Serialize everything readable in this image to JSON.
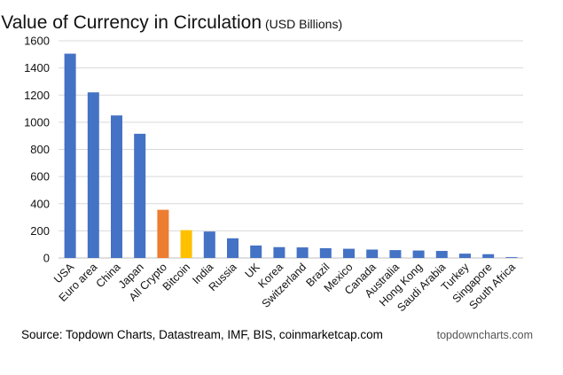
{
  "chart_data": {
    "type": "bar",
    "title": "Value of Currency in Circulation",
    "subtitle": "(USD Billions)",
    "xlabel": "",
    "ylabel": "",
    "ylim": [
      0,
      1600
    ],
    "yticks": [
      0,
      200,
      400,
      600,
      800,
      1000,
      1200,
      1400,
      1600
    ],
    "grid": true,
    "categories": [
      "USA",
      "Euro area",
      "China",
      "Japan",
      "All Crypto",
      "Bitcoin",
      "India",
      "Russia",
      "UK",
      "Korea",
      "Switzerland",
      "Brazil",
      "Mexico",
      "Canada",
      "Australia",
      "Hong Kong",
      "Saudi Arabia",
      "Turkey",
      "Singapore",
      "South Africa"
    ],
    "values": [
      1505,
      1220,
      1050,
      915,
      355,
      205,
      195,
      145,
      92,
      80,
      78,
      72,
      68,
      62,
      58,
      55,
      52,
      32,
      28,
      6
    ],
    "colors": [
      "#4472C4",
      "#4472C4",
      "#4472C4",
      "#4472C4",
      "#ED7D31",
      "#FFC000",
      "#4472C4",
      "#4472C4",
      "#4472C4",
      "#4472C4",
      "#4472C4",
      "#4472C4",
      "#4472C4",
      "#4472C4",
      "#4472C4",
      "#4472C4",
      "#4472C4",
      "#4472C4",
      "#4472C4",
      "#4472C4"
    ]
  },
  "footer": {
    "source": "Source: Topdown Charts, Datastream, IMF, BIS, coinmarketcap.com",
    "brand": "topdowncharts.com"
  }
}
